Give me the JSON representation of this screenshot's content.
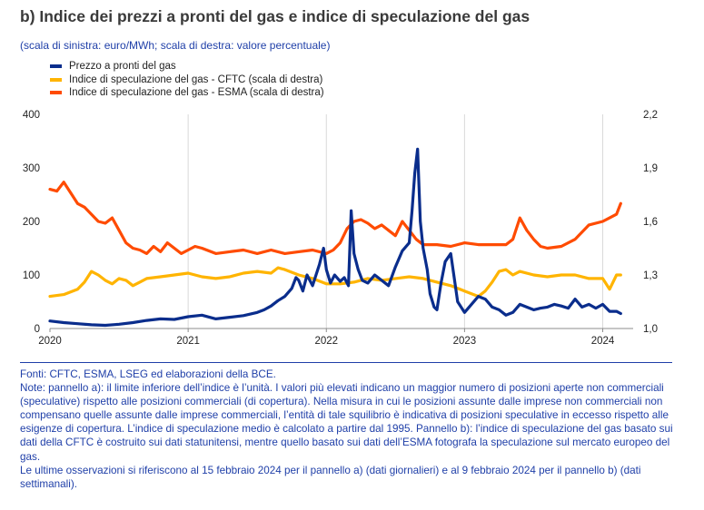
{
  "title": "b) Indice dei prezzi a pronti del gas e indice di speculazione del gas",
  "subtitle": "(scala di sinistra: euro/MWh; scala di destra: valore percentuale)",
  "colors": {
    "spot": "#0a2d8c",
    "cftc": "#ffb400",
    "esma": "#ff4b00",
    "grid": "#d9d9d9",
    "notes": "#1f3fa8"
  },
  "chart_data": {
    "type": "line",
    "x_range": [
      2020.0,
      2024.22
    ],
    "x_ticks": [
      "2020",
      "2021",
      "2022",
      "2023",
      "2024"
    ],
    "y_left": {
      "ylim": [
        0,
        400
      ],
      "ticks": [
        "0",
        "100",
        "200",
        "300",
        "400"
      ]
    },
    "y_right": {
      "ylim": [
        1.0,
        2.2
      ],
      "ticks": [
        "1,0",
        "1,3",
        "1,6",
        "1,9",
        "2,2"
      ]
    },
    "grid": "vertical",
    "legend_position": "top-left",
    "series": [
      {
        "name": "Prezzo a pronti del gas",
        "axis": "left",
        "color": "#0a2d8c",
        "x": [
          2020.0,
          2020.1,
          2020.2,
          2020.3,
          2020.4,
          2020.5,
          2020.6,
          2020.7,
          2020.8,
          2020.9,
          2021.0,
          2021.1,
          2021.2,
          2021.3,
          2021.4,
          2021.5,
          2021.55,
          2021.6,
          2021.65,
          2021.7,
          2021.75,
          2021.78,
          2021.8,
          2021.83,
          2021.86,
          2021.9,
          2021.95,
          2021.98,
          2022.0,
          2022.03,
          2022.06,
          2022.1,
          2022.13,
          2022.16,
          2022.18,
          2022.2,
          2022.23,
          2022.26,
          2022.3,
          2022.35,
          2022.4,
          2022.45,
          2022.5,
          2022.55,
          2022.6,
          2022.62,
          2022.64,
          2022.66,
          2022.68,
          2022.7,
          2022.73,
          2022.75,
          2022.78,
          2022.8,
          2022.83,
          2022.86,
          2022.9,
          2022.95,
          2023.0,
          2023.05,
          2023.1,
          2023.15,
          2023.2,
          2023.25,
          2023.3,
          2023.35,
          2023.4,
          2023.45,
          2023.5,
          2023.55,
          2023.6,
          2023.65,
          2023.7,
          2023.75,
          2023.8,
          2023.85,
          2023.9,
          2023.95,
          2024.0,
          2024.05,
          2024.1,
          2024.13
        ],
        "values": [
          14,
          11,
          9,
          7,
          6,
          8,
          11,
          15,
          18,
          17,
          22,
          25,
          18,
          21,
          24,
          30,
          35,
          42,
          52,
          60,
          75,
          95,
          90,
          70,
          100,
          80,
          120,
          150,
          110,
          85,
          100,
          88,
          95,
          80,
          220,
          140,
          110,
          90,
          85,
          100,
          90,
          80,
          115,
          145,
          160,
          220,
          290,
          335,
          200,
          150,
          110,
          65,
          40,
          35,
          85,
          125,
          140,
          50,
          30,
          45,
          60,
          55,
          40,
          35,
          25,
          30,
          45,
          40,
          35,
          38,
          40,
          45,
          42,
          38,
          55,
          40,
          45,
          38,
          45,
          32,
          32,
          28
        ]
      },
      {
        "name": "Indice di speculazione del gas - CFTC (scala di destra)",
        "axis": "right",
        "color": "#ffb400",
        "x": [
          2020.0,
          2020.1,
          2020.2,
          2020.25,
          2020.3,
          2020.35,
          2020.4,
          2020.45,
          2020.5,
          2020.55,
          2020.6,
          2020.65,
          2020.7,
          2020.8,
          2020.9,
          2021.0,
          2021.1,
          2021.2,
          2021.3,
          2021.4,
          2021.5,
          2021.6,
          2021.65,
          2021.7,
          2021.8,
          2021.9,
          2022.0,
          2022.1,
          2022.2,
          2022.3,
          2022.4,
          2022.5,
          2022.6,
          2022.7,
          2022.8,
          2022.9,
          2023.0,
          2023.1,
          2023.15,
          2023.2,
          2023.25,
          2023.3,
          2023.35,
          2023.4,
          2023.5,
          2023.6,
          2023.7,
          2023.8,
          2023.9,
          2024.0,
          2024.05,
          2024.1,
          2024.13
        ],
        "values": [
          1.18,
          1.19,
          1.22,
          1.26,
          1.32,
          1.3,
          1.27,
          1.25,
          1.28,
          1.27,
          1.24,
          1.26,
          1.28,
          1.29,
          1.3,
          1.31,
          1.29,
          1.28,
          1.29,
          1.31,
          1.32,
          1.31,
          1.34,
          1.33,
          1.3,
          1.28,
          1.25,
          1.25,
          1.26,
          1.28,
          1.27,
          1.28,
          1.29,
          1.28,
          1.26,
          1.24,
          1.21,
          1.18,
          1.21,
          1.26,
          1.32,
          1.33,
          1.3,
          1.32,
          1.3,
          1.29,
          1.3,
          1.3,
          1.28,
          1.28,
          1.22,
          1.3,
          1.3
        ]
      },
      {
        "name": "Indice di speculazione del gas - ESMA (scala di destra)",
        "axis": "right",
        "color": "#ff4b00",
        "x": [
          2020.0,
          2020.05,
          2020.1,
          2020.15,
          2020.2,
          2020.25,
          2020.3,
          2020.35,
          2020.4,
          2020.45,
          2020.5,
          2020.55,
          2020.6,
          2020.65,
          2020.7,
          2020.75,
          2020.8,
          2020.85,
          2020.9,
          2020.95,
          2021.0,
          2021.05,
          2021.1,
          2021.2,
          2021.3,
          2021.4,
          2021.5,
          2021.6,
          2021.7,
          2021.8,
          2021.9,
          2022.0,
          2022.05,
          2022.1,
          2022.15,
          2022.2,
          2022.25,
          2022.3,
          2022.35,
          2022.4,
          2022.45,
          2022.5,
          2022.55,
          2022.6,
          2022.65,
          2022.7,
          2022.8,
          2022.9,
          2023.0,
          2023.1,
          2023.2,
          2023.3,
          2023.35,
          2023.4,
          2023.45,
          2023.5,
          2023.55,
          2023.6,
          2023.7,
          2023.8,
          2023.9,
          2024.0,
          2024.05,
          2024.1,
          2024.13
        ],
        "values": [
          1.78,
          1.77,
          1.82,
          1.76,
          1.7,
          1.68,
          1.64,
          1.6,
          1.59,
          1.62,
          1.55,
          1.48,
          1.45,
          1.44,
          1.42,
          1.46,
          1.43,
          1.48,
          1.45,
          1.42,
          1.44,
          1.46,
          1.45,
          1.42,
          1.43,
          1.44,
          1.42,
          1.44,
          1.42,
          1.43,
          1.44,
          1.42,
          1.44,
          1.48,
          1.56,
          1.6,
          1.61,
          1.59,
          1.56,
          1.58,
          1.55,
          1.52,
          1.6,
          1.55,
          1.5,
          1.47,
          1.47,
          1.46,
          1.48,
          1.47,
          1.47,
          1.47,
          1.5,
          1.62,
          1.55,
          1.5,
          1.46,
          1.45,
          1.46,
          1.5,
          1.58,
          1.6,
          1.62,
          1.64,
          1.7
        ]
      }
    ]
  },
  "notes": {
    "l1": "Fonti: CFTC, ESMA, LSEG ed elaborazioni della BCE.",
    "l2": "Note: pannello a): il limite inferiore dell’indice è l’unità. I valori più elevati indicano un maggior numero di posizioni aperte non commerciali (speculative) rispetto alle posizioni commerciali (di copertura). Nella misura in cui le posizioni assunte dalle imprese non commerciali non compensano quelle assunte dalle imprese commerciali, l’entità di tale squilibrio è indicativa di posizioni speculative in eccesso rispetto alle esigenze di copertura. L’indice di speculazione medio è calcolato a partire dal 1995. Pannello b): l’indice di speculazione del gas basato sui dati della CFTC è costruito sui dati statunitensi, mentre quello basato sui dati dell’ESMA fotografa la speculazione sul mercato europeo del gas.",
    "l3": "Le ultime osservazioni si riferiscono al 15 febbraio 2024 per il pannello a) (dati giornalieri) e al 9 febbraio 2024 per il pannello b) (dati settimanali)."
  }
}
